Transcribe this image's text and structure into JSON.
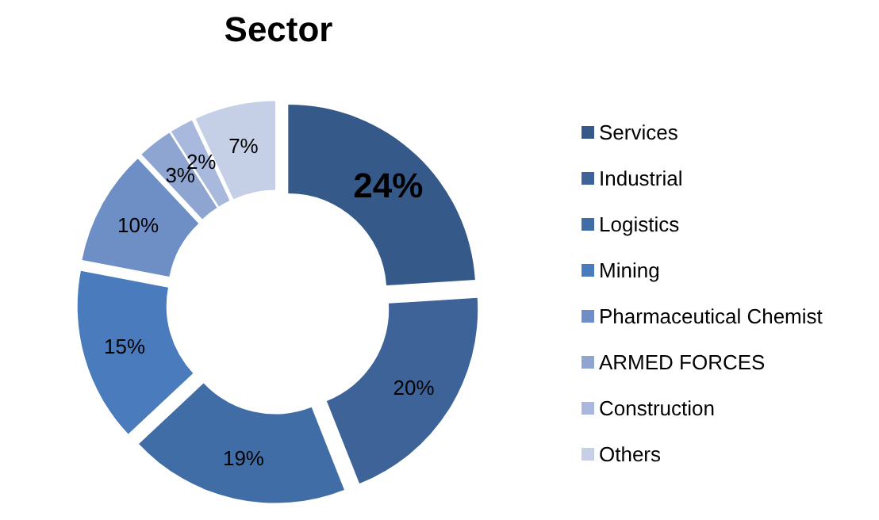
{
  "chart_data": {
    "type": "donut",
    "title": "Sector",
    "categories": [
      "Services",
      "Industrial",
      "Logistics",
      "Mining",
      "Pharmaceutical Chemist",
      "ARMED FORCES",
      "Construction",
      "Others"
    ],
    "values": [
      24,
      20,
      19,
      15,
      10,
      3,
      2,
      7
    ],
    "colors": [
      "#355a8a",
      "#3d6399",
      "#416da6",
      "#4a7bbd",
      "#6e8fc6",
      "#8fa5d1",
      "#a9b9dd",
      "#c5cfe6"
    ],
    "value_labels": [
      "24%",
      "20%",
      "19%",
      "15%",
      "10%",
      "3%",
      "2%",
      "7%"
    ],
    "legend": "right"
  }
}
